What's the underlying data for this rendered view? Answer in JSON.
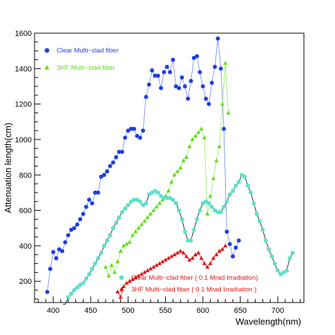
{
  "chart_data": {
    "type": "scatter",
    "xlabel": "Wavelength(nm)",
    "ylabel": "Attenuation length(cm)",
    "xlim": [
      375,
      735
    ],
    "ylim": [
      80,
      1600
    ],
    "xticks": [
      "400",
      "450",
      "500",
      "550",
      "600",
      "650",
      "700"
    ],
    "yticks": [
      "200",
      "400",
      "600",
      "800",
      "1000",
      "1200",
      "1400",
      "1600"
    ],
    "legend_position": "top-left and bottom-center",
    "series": [
      {
        "name": "Clear Multi−clad fiber",
        "marker": "circle",
        "color": "#1f3fe0",
        "line_color": "#6a86e8",
        "points": [
          [
            392,
            140
          ],
          [
            396,
            270
          ],
          [
            400,
            365
          ],
          [
            404,
            330
          ],
          [
            408,
            380
          ],
          [
            412,
            370
          ],
          [
            416,
            420
          ],
          [
            420,
            460
          ],
          [
            424,
            490
          ],
          [
            428,
            500
          ],
          [
            432,
            520
          ],
          [
            436,
            550
          ],
          [
            440,
            580
          ],
          [
            444,
            620
          ],
          [
            448,
            660
          ],
          [
            452,
            640
          ],
          [
            456,
            700
          ],
          [
            460,
            700
          ],
          [
            464,
            790
          ],
          [
            468,
            800
          ],
          [
            472,
            820
          ],
          [
            476,
            850
          ],
          [
            480,
            870
          ],
          [
            484,
            900
          ],
          [
            488,
            930
          ],
          [
            492,
            930
          ],
          [
            496,
            1010
          ],
          [
            500,
            1050
          ],
          [
            504,
            1060
          ],
          [
            508,
            1060
          ],
          [
            512,
            1020
          ],
          [
            516,
            1010
          ],
          [
            520,
            1050
          ],
          [
            524,
            1240
          ],
          [
            528,
            1310
          ],
          [
            532,
            1390
          ],
          [
            536,
            1360
          ],
          [
            540,
            1360
          ],
          [
            544,
            1290
          ],
          [
            548,
            1380
          ],
          [
            552,
            1410
          ],
          [
            556,
            1380
          ],
          [
            560,
            1450
          ],
          [
            564,
            1300
          ],
          [
            568,
            1290
          ],
          [
            572,
            1350
          ],
          [
            576,
            1300
          ],
          [
            580,
            1230
          ],
          [
            584,
            1330
          ],
          [
            588,
            1460
          ],
          [
            592,
            1470
          ],
          [
            596,
            1380
          ],
          [
            600,
            1300
          ],
          [
            604,
            1230
          ],
          [
            608,
            1200
          ],
          [
            612,
            1320
          ],
          [
            616,
            1410
          ],
          [
            620,
            1570
          ],
          [
            624,
            1400
          ],
          [
            628,
            1060
          ],
          [
            632,
            480
          ],
          [
            636,
            410
          ],
          [
            640,
            340
          ],
          [
            644,
            390
          ],
          [
            648,
            430
          ]
        ]
      },
      {
        "name": "3HF Multi−clad fiber",
        "marker": "triangle",
        "color": "#5ee010",
        "line_color": "#8fe85a",
        "points": [
          [
            470,
            280
          ],
          [
            474,
            230
          ],
          [
            478,
            290
          ],
          [
            482,
            250
          ],
          [
            486,
            310
          ],
          [
            490,
            370
          ],
          [
            494,
            400
          ],
          [
            498,
            410
          ],
          [
            502,
            420
          ],
          [
            506,
            460
          ],
          [
            510,
            480
          ],
          [
            514,
            500
          ],
          [
            518,
            520
          ],
          [
            522,
            540
          ],
          [
            526,
            560
          ],
          [
            530,
            580
          ],
          [
            534,
            600
          ],
          [
            538,
            620
          ],
          [
            542,
            640
          ],
          [
            546,
            660
          ],
          [
            550,
            680
          ],
          [
            554,
            710
          ],
          [
            558,
            760
          ],
          [
            562,
            800
          ],
          [
            566,
            820
          ],
          [
            570,
            840
          ],
          [
            574,
            880
          ],
          [
            578,
            900
          ],
          [
            582,
            960
          ],
          [
            586,
            1000
          ],
          [
            590,
            1020
          ],
          [
            594,
            1040
          ],
          [
            598,
            1060
          ],
          [
            602,
            1010
          ],
          [
            606,
            580
          ],
          [
            610,
            680
          ],
          [
            614,
            780
          ],
          [
            618,
            880
          ],
          [
            622,
            960
          ],
          [
            626,
            1200
          ],
          [
            630,
            1430
          ],
          [
            634,
            1150
          ]
        ]
      },
      {
        "name": "Clear Multi−clad fiber ( 0.1 Mrad Irradiation)",
        "marker": "circle",
        "color": "#5ce0c8",
        "line_color": "#000000",
        "points": [
          [
            413,
            70
          ],
          [
            416,
            70
          ],
          [
            420,
            110
          ],
          [
            424,
            130
          ],
          [
            428,
            150
          ],
          [
            432,
            165
          ],
          [
            436,
            180
          ],
          [
            440,
            190
          ],
          [
            444,
            215
          ],
          [
            448,
            240
          ],
          [
            452,
            270
          ],
          [
            456,
            300
          ],
          [
            460,
            330
          ],
          [
            464,
            360
          ],
          [
            468,
            400
          ],
          [
            472,
            430
          ],
          [
            476,
            460
          ],
          [
            480,
            500
          ],
          [
            484,
            530
          ],
          [
            488,
            560
          ],
          [
            492,
            590
          ],
          [
            496,
            610
          ],
          [
            500,
            630
          ],
          [
            504,
            650
          ],
          [
            508,
            660
          ],
          [
            512,
            660
          ],
          [
            516,
            650
          ],
          [
            520,
            630
          ],
          [
            524,
            640
          ],
          [
            528,
            690
          ],
          [
            532,
            700
          ],
          [
            536,
            710
          ],
          [
            540,
            700
          ],
          [
            544,
            680
          ],
          [
            548,
            670
          ],
          [
            552,
            670
          ],
          [
            556,
            670
          ],
          [
            560,
            660
          ],
          [
            564,
            640
          ],
          [
            568,
            600
          ],
          [
            572,
            550
          ],
          [
            576,
            480
          ],
          [
            580,
            430
          ],
          [
            584,
            430
          ],
          [
            588,
            490
          ],
          [
            592,
            550
          ],
          [
            596,
            600
          ],
          [
            600,
            640
          ],
          [
            604,
            650
          ],
          [
            608,
            640
          ],
          [
            612,
            620
          ],
          [
            616,
            600
          ],
          [
            620,
            590
          ],
          [
            624,
            590
          ],
          [
            628,
            620
          ],
          [
            632,
            650
          ],
          [
            636,
            690
          ],
          [
            640,
            710
          ],
          [
            644,
            740
          ],
          [
            648,
            760
          ],
          [
            652,
            800
          ],
          [
            656,
            790
          ],
          [
            660,
            740
          ],
          [
            664,
            700
          ],
          [
            668,
            640
          ],
          [
            672,
            580
          ],
          [
            676,
            540
          ],
          [
            680,
            490
          ],
          [
            684,
            430
          ],
          [
            688,
            380
          ],
          [
            692,
            340
          ],
          [
            696,
            300
          ],
          [
            700,
            260
          ],
          [
            704,
            240
          ],
          [
            708,
            250
          ],
          [
            712,
            260
          ],
          [
            716,
            330
          ],
          [
            720,
            360
          ]
        ]
      },
      {
        "name": "3HF Multi−clad fiber ( 0.1 Mrad Irradiation )",
        "marker": "triangle",
        "color": "#e01515",
        "line_color": "#e01515",
        "points": [
          [
            486,
            140
          ],
          [
            490,
            110
          ],
          [
            494,
            170
          ],
          [
            498,
            190
          ],
          [
            502,
            200
          ],
          [
            506,
            210
          ],
          [
            510,
            220
          ],
          [
            514,
            230
          ],
          [
            518,
            240
          ],
          [
            522,
            250
          ],
          [
            526,
            260
          ],
          [
            530,
            270
          ],
          [
            534,
            280
          ],
          [
            538,
            290
          ],
          [
            542,
            300
          ],
          [
            546,
            310
          ],
          [
            550,
            320
          ],
          [
            554,
            330
          ],
          [
            558,
            340
          ],
          [
            562,
            350
          ],
          [
            566,
            360
          ],
          [
            570,
            370
          ],
          [
            574,
            360
          ],
          [
            578,
            340
          ],
          [
            582,
            320
          ],
          [
            586,
            330
          ],
          [
            590,
            350
          ],
          [
            594,
            360
          ],
          [
            598,
            330
          ],
          [
            602,
            300
          ],
          [
            606,
            280
          ],
          [
            610,
            300
          ],
          [
            614,
            330
          ],
          [
            618,
            350
          ],
          [
            622,
            370
          ],
          [
            626,
            380
          ],
          [
            630,
            400
          ]
        ]
      }
    ]
  }
}
